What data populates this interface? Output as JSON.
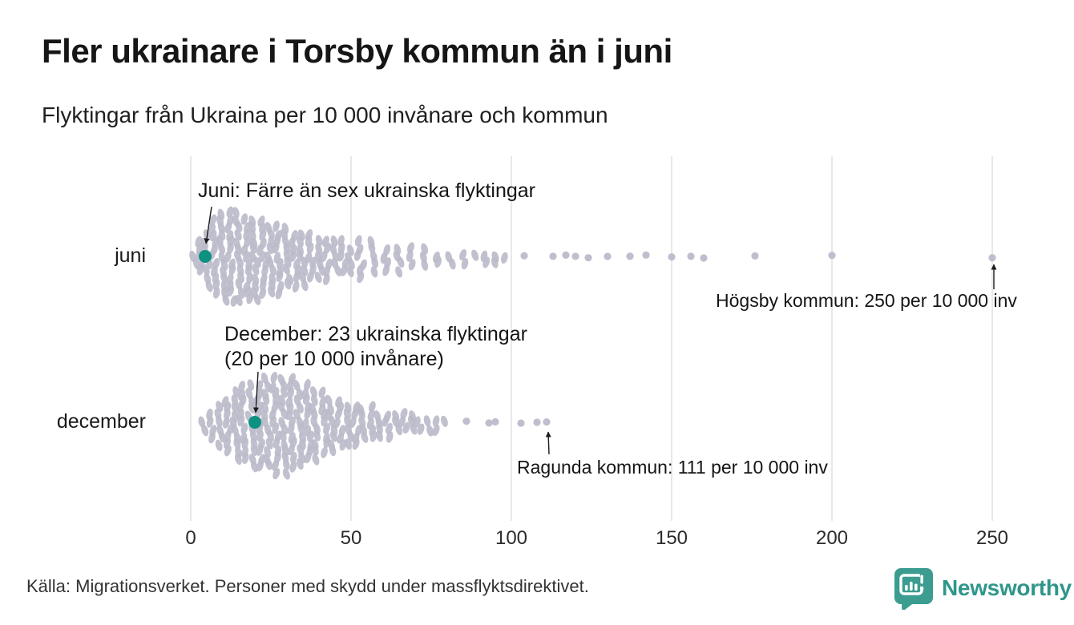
{
  "header": {
    "title": "Fler ukrainare i Torsby kommun än i juni",
    "subtitle": "Flyktingar från Ukraina per 10 000 invånare och kommun"
  },
  "annotations": {
    "juni_note": "Juni: Färre än sex ukrainska flyktingar",
    "december_note_line1": "December: 23 ukrainska flyktingar",
    "december_note_line2": "(20 per 10 000 invånare)",
    "hogsby_note": "Högsby kommun: 250 per 10 000 inv",
    "ragunda_note": "Ragunda kommun: 111 per 10 000 inv"
  },
  "footer": {
    "source": "Källa: Migrationsverket. Personer med skydd under massflyktsdirektivet.",
    "brand": "Newsworthy"
  },
  "colors": {
    "dot": "#bcbbca",
    "highlight": "#0d9180",
    "gridline": "#dcdcdc",
    "brand": "#2f968a",
    "logo": "#3b9c8f",
    "arrow": "#1a1a1a"
  },
  "chart_data": {
    "type": "beeswarm",
    "title": "Fler ukrainare i Torsby kommun än i juni",
    "subtitle": "Flyktingar från Ukraina per 10 000 invånare och kommun",
    "unit": "flyktingar per 10 000 invånare och kommun",
    "x_ticks": [
      0,
      50,
      100,
      150,
      200,
      250
    ],
    "x_range": [
      0,
      260
    ],
    "grid": true,
    "rows": [
      {
        "label": "juni",
        "highlight": {
          "value": 4.5,
          "note": "Juni: Färre än sex ukrainska flyktingar"
        },
        "max_point": {
          "name": "Högsby kommun",
          "value": 250,
          "note": "Högsby kommun: 250 per 10 000 inv"
        },
        "bins": [
          [
            1,
            2
          ],
          [
            3,
            5
          ],
          [
            5,
            8
          ],
          [
            7.5,
            11
          ],
          [
            10,
            13
          ],
          [
            12.5,
            13
          ],
          [
            15,
            13
          ],
          [
            17.5,
            12
          ],
          [
            20,
            12
          ],
          [
            22.5,
            11
          ],
          [
            25,
            10
          ],
          [
            27.5,
            10
          ],
          [
            30,
            9
          ],
          [
            32.5,
            8
          ],
          [
            35,
            8
          ],
          [
            37.5,
            7
          ],
          [
            40,
            6
          ],
          [
            42.5,
            6
          ],
          [
            45,
            5
          ],
          [
            47.5,
            5
          ],
          [
            50,
            4
          ],
          [
            53,
            6
          ],
          [
            57,
            5
          ],
          [
            61,
            4
          ],
          [
            65,
            4
          ],
          [
            69,
            3
          ],
          [
            73,
            3
          ],
          [
            77,
            2
          ],
          [
            81,
            2
          ],
          [
            85,
            2
          ],
          [
            89,
            1
          ],
          [
            92,
            2
          ],
          [
            95,
            2
          ],
          [
            98,
            1
          ]
        ],
        "outliers": [
          104,
          113,
          117,
          120,
          124,
          130,
          137,
          142,
          150,
          156,
          160,
          176,
          200,
          250
        ]
      },
      {
        "label": "december",
        "highlight": {
          "value": 20,
          "note": "December: 23 ukrainska flyktingar (20 per 10 000 invånare)"
        },
        "max_point": {
          "name": "Ragunda kommun",
          "value": 111,
          "note": "Ragunda kommun: 111 per 10 000 inv"
        },
        "bins": [
          [
            4,
            2
          ],
          [
            6.5,
            4
          ],
          [
            9,
            6
          ],
          [
            11.5,
            8
          ],
          [
            14,
            10
          ],
          [
            16.5,
            11
          ],
          [
            19,
            12
          ],
          [
            21.5,
            12
          ],
          [
            24,
            13
          ],
          [
            26.5,
            14
          ],
          [
            29,
            14
          ],
          [
            31.5,
            13
          ],
          [
            34,
            12
          ],
          [
            36.5,
            11
          ],
          [
            39,
            10
          ],
          [
            41.5,
            9
          ],
          [
            44,
            8
          ],
          [
            46.5,
            7
          ],
          [
            49,
            6
          ],
          [
            51.5,
            6
          ],
          [
            54,
            5
          ],
          [
            56.5,
            5
          ],
          [
            59,
            4
          ],
          [
            61.5,
            4
          ],
          [
            64,
            3
          ],
          [
            66.5,
            3
          ],
          [
            69,
            3
          ],
          [
            71.5,
            2
          ],
          [
            74,
            2
          ],
          [
            76.5,
            2
          ],
          [
            79,
            1
          ]
        ],
        "outliers": [
          86,
          93,
          95,
          103,
          108,
          111
        ]
      }
    ]
  }
}
